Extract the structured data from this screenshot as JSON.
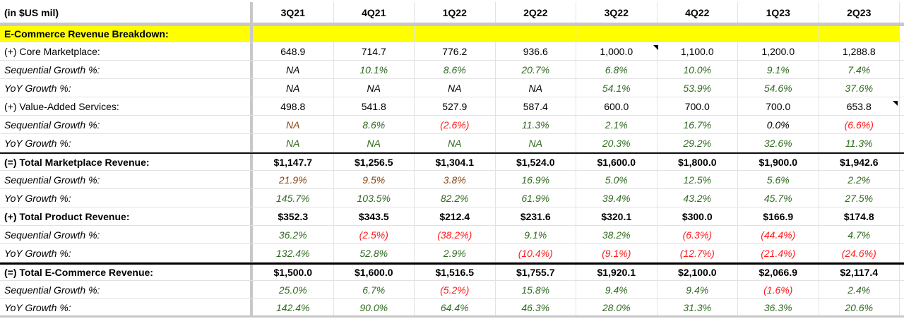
{
  "colors": {
    "k": "#000000",
    "g": "#2f6a1f",
    "r": "#ff1a1a",
    "b": "#8b4513",
    "highlight": "#ffff00"
  },
  "header": {
    "label": "(in $US mil)",
    "periods": [
      "3Q21",
      "4Q21",
      "1Q22",
      "2Q22",
      "3Q22",
      "4Q22",
      "1Q23",
      "2Q23"
    ]
  },
  "section_title": "E-Commerce Revenue Breakdown:",
  "rows": [
    {
      "label": "(+) Core Marketplace:",
      "style": "normal",
      "cells": [
        [
          "648.9",
          "k"
        ],
        [
          "714.7",
          "k"
        ],
        [
          "776.2",
          "k"
        ],
        [
          "936.6",
          "k"
        ],
        [
          "1,000.0",
          "k"
        ],
        [
          "1,100.0",
          "k"
        ],
        [
          "1,200.0",
          "k"
        ],
        [
          "1,288.8",
          "k"
        ]
      ]
    },
    {
      "label": "Sequential Growth %:",
      "style": "italic",
      "cells": [
        [
          "NA",
          "k"
        ],
        [
          "10.1%",
          "g"
        ],
        [
          "8.6%",
          "g"
        ],
        [
          "20.7%",
          "g"
        ],
        [
          "6.8%",
          "g"
        ],
        [
          "10.0%",
          "g"
        ],
        [
          "9.1%",
          "g"
        ],
        [
          "7.4%",
          "g"
        ]
      ]
    },
    {
      "label": "YoY Growth %:",
      "style": "italic",
      "cells": [
        [
          "NA",
          "k"
        ],
        [
          "NA",
          "k"
        ],
        [
          "NA",
          "k"
        ],
        [
          "NA",
          "k"
        ],
        [
          "54.1%",
          "g"
        ],
        [
          "53.9%",
          "g"
        ],
        [
          "54.6%",
          "g"
        ],
        [
          "37.6%",
          "g"
        ]
      ]
    },
    {
      "label": "(+) Value-Added Services:",
      "style": "normal",
      "cells": [
        [
          "498.8",
          "k"
        ],
        [
          "541.8",
          "k"
        ],
        [
          "527.9",
          "k"
        ],
        [
          "587.4",
          "k"
        ],
        [
          "600.0",
          "k"
        ],
        [
          "700.0",
          "k"
        ],
        [
          "700.0",
          "k"
        ],
        [
          "653.8",
          "k"
        ]
      ]
    },
    {
      "label": "Sequential Growth %:",
      "style": "italic",
      "cells": [
        [
          "NA",
          "b"
        ],
        [
          "8.6%",
          "g"
        ],
        [
          "(2.6%)",
          "r"
        ],
        [
          "11.3%",
          "g"
        ],
        [
          "2.1%",
          "g"
        ],
        [
          "16.7%",
          "g"
        ],
        [
          "0.0%",
          "k"
        ],
        [
          "(6.6%)",
          "r"
        ]
      ]
    },
    {
      "label": "YoY Growth %:",
      "style": "italic",
      "cells": [
        [
          "NA",
          "g"
        ],
        [
          "NA",
          "g"
        ],
        [
          "NA",
          "g"
        ],
        [
          "NA",
          "g"
        ],
        [
          "20.3%",
          "g"
        ],
        [
          "29.2%",
          "g"
        ],
        [
          "32.6%",
          "g"
        ],
        [
          "11.3%",
          "g"
        ]
      ]
    },
    {
      "label": "(=) Total Marketplace Revenue:",
      "style": "bold",
      "cells": [
        [
          "$1,147.7",
          "k"
        ],
        [
          "$1,256.5",
          "k"
        ],
        [
          "$1,304.1",
          "k"
        ],
        [
          "$1,524.0",
          "k"
        ],
        [
          "$1,600.0",
          "k"
        ],
        [
          "$1,800.0",
          "k"
        ],
        [
          "$1,900.0",
          "k"
        ],
        [
          "$1,942.6",
          "k"
        ]
      ]
    },
    {
      "label": "Sequential Growth %:",
      "style": "italic",
      "cells": [
        [
          "21.9%",
          "b"
        ],
        [
          "9.5%",
          "b"
        ],
        [
          "3.8%",
          "b"
        ],
        [
          "16.9%",
          "g"
        ],
        [
          "5.0%",
          "g"
        ],
        [
          "12.5%",
          "g"
        ],
        [
          "5.6%",
          "g"
        ],
        [
          "2.2%",
          "g"
        ]
      ]
    },
    {
      "label": "YoY Growth %:",
      "style": "italic",
      "cells": [
        [
          "145.7%",
          "g"
        ],
        [
          "103.5%",
          "g"
        ],
        [
          "82.2%",
          "g"
        ],
        [
          "61.9%",
          "g"
        ],
        [
          "39.4%",
          "g"
        ],
        [
          "43.2%",
          "g"
        ],
        [
          "45.7%",
          "g"
        ],
        [
          "27.5%",
          "g"
        ]
      ]
    },
    {
      "label": "(+) Total Product Revenue:",
      "style": "bold",
      "cells": [
        [
          "$352.3",
          "k"
        ],
        [
          "$343.5",
          "k"
        ],
        [
          "$212.4",
          "k"
        ],
        [
          "$231.6",
          "k"
        ],
        [
          "$320.1",
          "k"
        ],
        [
          "$300.0",
          "k"
        ],
        [
          "$166.9",
          "k"
        ],
        [
          "$174.8",
          "k"
        ]
      ]
    },
    {
      "label": "Sequential Growth %:",
      "style": "italic",
      "cells": [
        [
          "36.2%",
          "g"
        ],
        [
          "(2.5%)",
          "r"
        ],
        [
          "(38.2%)",
          "r"
        ],
        [
          "9.1%",
          "g"
        ],
        [
          "38.2%",
          "g"
        ],
        [
          "(6.3%)",
          "r"
        ],
        [
          "(44.4%)",
          "r"
        ],
        [
          "4.7%",
          "g"
        ]
      ]
    },
    {
      "label": "YoY Growth %:",
      "style": "italic",
      "cells": [
        [
          "132.4%",
          "g"
        ],
        [
          "52.8%",
          "g"
        ],
        [
          "2.9%",
          "g"
        ],
        [
          "(10.4%)",
          "r"
        ],
        [
          "(9.1%)",
          "r"
        ],
        [
          "(12.7%)",
          "r"
        ],
        [
          "(21.4%)",
          "r"
        ],
        [
          "(24.6%)",
          "r"
        ]
      ]
    },
    {
      "label": "(=) Total E-Commerce Revenue:",
      "style": "bold",
      "cells": [
        [
          "$1,500.0",
          "k"
        ],
        [
          "$1,600.0",
          "k"
        ],
        [
          "$1,516.5",
          "k"
        ],
        [
          "$1,755.7",
          "k"
        ],
        [
          "$1,920.1",
          "k"
        ],
        [
          "$2,100.0",
          "k"
        ],
        [
          "$2,066.9",
          "k"
        ],
        [
          "$2,117.4",
          "k"
        ]
      ]
    },
    {
      "label": "Sequential Growth %:",
      "style": "italic",
      "cells": [
        [
          "25.0%",
          "g"
        ],
        [
          "6.7%",
          "g"
        ],
        [
          "(5.2%)",
          "r"
        ],
        [
          "15.8%",
          "g"
        ],
        [
          "9.4%",
          "g"
        ],
        [
          "9.4%",
          "g"
        ],
        [
          "(1.6%)",
          "r"
        ],
        [
          "2.4%",
          "g"
        ]
      ]
    },
    {
      "label": "YoY Growth %:",
      "style": "italic",
      "cells": [
        [
          "142.4%",
          "g"
        ],
        [
          "90.0%",
          "g"
        ],
        [
          "64.4%",
          "g"
        ],
        [
          "46.3%",
          "g"
        ],
        [
          "28.0%",
          "g"
        ],
        [
          "31.3%",
          "g"
        ],
        [
          "36.3%",
          "g"
        ],
        [
          "20.6%",
          "g"
        ]
      ]
    }
  ]
}
